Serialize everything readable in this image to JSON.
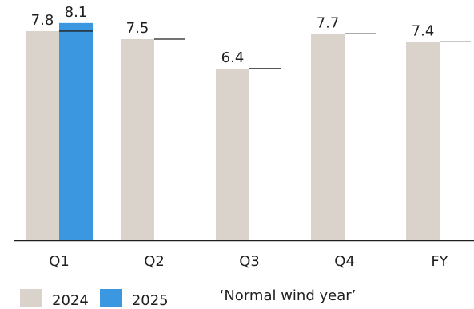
{
  "chart_data": {
    "type": "bar",
    "categories": [
      "Q1",
      "Q2",
      "Q3",
      "Q4",
      "FY"
    ],
    "series": [
      {
        "name": "2024",
        "values": [
          7.8,
          7.5,
          6.4,
          7.7,
          7.4
        ],
        "color": "#d9d3cc"
      },
      {
        "name": "2025",
        "values": [
          8.1,
          null,
          null,
          null,
          null
        ],
        "color": "#3b97e0"
      }
    ],
    "reference": {
      "name": "‘Normal wind year’",
      "values": [
        7.8,
        7.5,
        6.4,
        7.7,
        7.4
      ],
      "color": "#1f1f1f"
    },
    "data_labels": [
      [
        "7.8",
        "7.5",
        "6.4",
        "7.7",
        "7.4"
      ],
      [
        "8.1",
        "",
        "",
        "",
        ""
      ]
    ],
    "ylim": [
      0,
      8.5
    ],
    "grid": false,
    "legend_position": "bottom-left"
  }
}
